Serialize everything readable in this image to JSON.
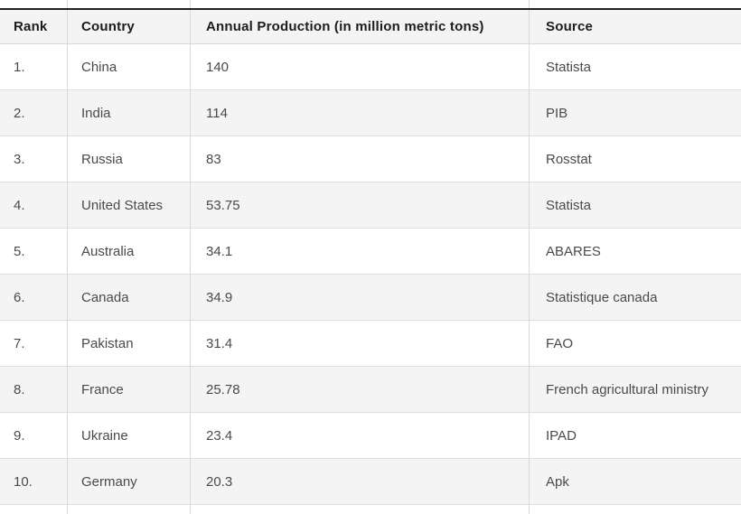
{
  "chart_data": {
    "type": "table",
    "columns": [
      "Rank",
      "Country",
      "Annual Production (in million metric tons)",
      "Source"
    ],
    "rows": [
      [
        "1.",
        "China",
        "140",
        "Statista"
      ],
      [
        "2.",
        "India",
        "114",
        "PIB"
      ],
      [
        "3.",
        "Russia",
        "83",
        "Rosstat"
      ],
      [
        "4.",
        "United States",
        "53.75",
        "Statista"
      ],
      [
        "5.",
        "Australia",
        "34.1",
        "ABARES"
      ],
      [
        "6.",
        "Canada",
        "34.9",
        "Statistique canada"
      ],
      [
        "7.",
        "Pakistan",
        "31.4",
        "FAO"
      ],
      [
        "8.",
        "France",
        "25.78",
        "French agricultural ministry"
      ],
      [
        "9.",
        "Ukraine",
        "23.4",
        "IPAD"
      ],
      [
        "10.",
        "Germany",
        "20.3",
        "Apk"
      ]
    ]
  },
  "colors": {
    "header_bg": "#f4f4f4",
    "row_bg": "#ffffff",
    "alt_row_bg": "#f4f4f4",
    "grid_border": "#d9d9d9",
    "row_border": "#dddddd",
    "top_rule": "#222222",
    "header_text": "#1c1c1c",
    "body_text": "#4a4a4a"
  }
}
